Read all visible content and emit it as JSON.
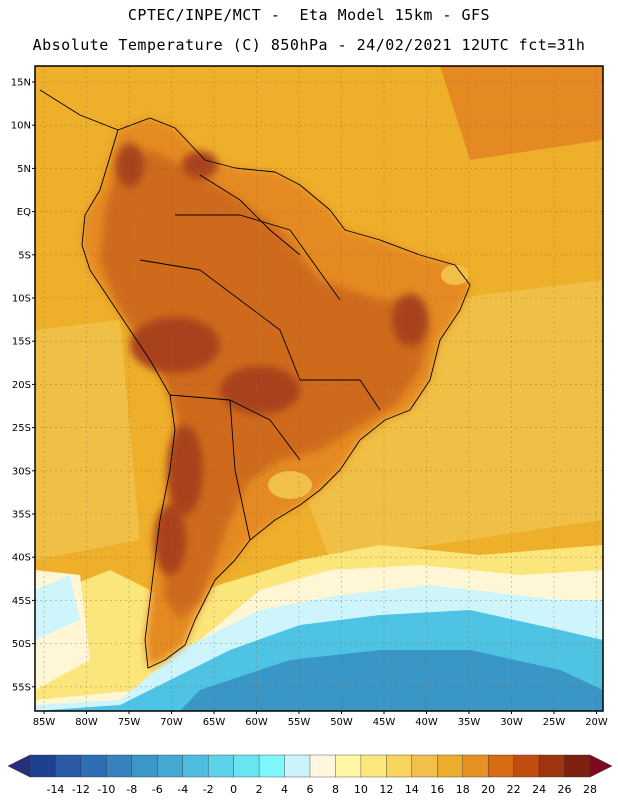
{
  "title": {
    "line1": "CPTEC/INPE/MCT -  Eta Model 15km - GFS",
    "line2": "Absolute Temperature (C) 850hPa - 24/02/2021 12UTC fct=31h"
  },
  "map": {
    "lat_labels": [
      "15N",
      "10N",
      "5N",
      "EQ",
      "5S",
      "10S",
      "15S",
      "20S",
      "25S",
      "30S",
      "35S",
      "40S",
      "45S",
      "50S",
      "55S"
    ],
    "lon_labels": [
      "85W",
      "80W",
      "75W",
      "70W",
      "65W",
      "60W",
      "55W",
      "50W",
      "45W",
      "40W",
      "35W",
      "30W",
      "25W",
      "20W"
    ]
  },
  "colorbar": {
    "labels": [
      "-14",
      "-12",
      "-10",
      "-8",
      "-6",
      "-4",
      "-2",
      "0",
      "2",
      "4",
      "6",
      "8",
      "10",
      "12",
      "14",
      "16",
      "18",
      "20",
      "22",
      "24",
      "26",
      "28"
    ],
    "colors": [
      "#1f3f8f",
      "#2a5aa5",
      "#2e6fb4",
      "#3683bf",
      "#3b97c8",
      "#43a9d2",
      "#4dbde0",
      "#5dd3ea",
      "#67e6f2",
      "#7ff7fb",
      "#cbf3fb",
      "#fff7e0",
      "#fff6a6",
      "#fbe77c",
      "#f6d45e",
      "#f0c04a",
      "#ecac2c",
      "#e59020",
      "#d86a12",
      "#c04c10",
      "#9e3410",
      "#7e2010"
    ],
    "min_arrow_color": "#2a2e7a",
    "max_arrow_color": "#7b0a22"
  },
  "palette": {
    "ocean_tropical": "#eeaf2b",
    "ocean_subtropical": "#f0bf45",
    "land_warm": "#e58a22",
    "land_hot": "#cf6a1a",
    "land_hottest": "#a9431a",
    "south_mid": "#fbe67c",
    "south_pale": "#fff6d6",
    "south_cyan": "#cdf5fb",
    "south_blue": "#4ec3e3",
    "south_deep": "#3a96c6"
  }
}
